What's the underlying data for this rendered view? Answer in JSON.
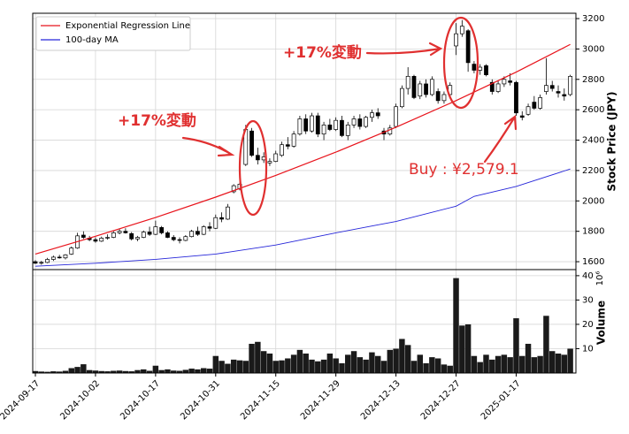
{
  "chart_data": [
    {
      "type": "candlestick",
      "ylabel": "Stock Price (JPY)",
      "categories": [
        "2024-09-17",
        null,
        null,
        null,
        null,
        null,
        null,
        null,
        null,
        null,
        "2024-10-02",
        null,
        null,
        null,
        null,
        null,
        null,
        null,
        null,
        null,
        "2024-10-17",
        null,
        null,
        null,
        null,
        null,
        null,
        null,
        null,
        null,
        "2024-10-31",
        null,
        null,
        null,
        null,
        null,
        null,
        null,
        null,
        null,
        "2024-11-15",
        null,
        null,
        null,
        null,
        null,
        null,
        null,
        null,
        null,
        "2024-11-29",
        null,
        null,
        null,
        null,
        null,
        null,
        null,
        null,
        null,
        "2024-12-13",
        null,
        null,
        null,
        null,
        null,
        null,
        null,
        null,
        null,
        "2024-12-27",
        null,
        null,
        null,
        null,
        null,
        null,
        null,
        null,
        null,
        "2025-01-17",
        null,
        null,
        null,
        null,
        null,
        null,
        null,
        null,
        null
      ],
      "open": [
        1600,
        1590,
        1595,
        1615,
        1630,
        1625,
        1650,
        1690,
        1775,
        1755,
        1745,
        1735,
        1755,
        1760,
        1790,
        1800,
        1785,
        1750,
        1760,
        1795,
        1780,
        1825,
        1790,
        1760,
        1745,
        1740,
        1765,
        1800,
        1780,
        1830,
        1820,
        1890,
        1880,
        2060,
        2080,
        2240,
        2460,
        2300,
        2270,
        2250,
        2260,
        2300,
        2370,
        2360,
        2440,
        2540,
        2460,
        2560,
        2440,
        2500,
        2470,
        2530,
        2430,
        2500,
        2540,
        2490,
        2550,
        2580,
        2460,
        2440,
        2490,
        2620,
        2740,
        2820,
        2690,
        2770,
        2700,
        2720,
        2660,
        2700,
        3020,
        3100,
        3120,
        2900,
        2860,
        2890,
        2780,
        2720,
        2770,
        2790,
        2780,
        2560,
        2570,
        2650,
        2610,
        2720,
        2760,
        2720,
        2700,
        2700
      ],
      "high": [
        1610,
        1605,
        1625,
        1640,
        1645,
        1650,
        1700,
        1790,
        1800,
        1770,
        1760,
        1765,
        1780,
        1800,
        1815,
        1820,
        1795,
        1770,
        1805,
        1830,
        1870,
        1835,
        1800,
        1775,
        1760,
        1775,
        1810,
        1830,
        1840,
        1860,
        1910,
        1925,
        1980,
        2110,
        2120,
        2500,
        2480,
        2350,
        2320,
        2280,
        2330,
        2390,
        2420,
        2460,
        2560,
        2570,
        2580,
        2580,
        2520,
        2540,
        2550,
        2560,
        2520,
        2560,
        2570,
        2560,
        2600,
        2610,
        2480,
        2500,
        2640,
        2760,
        2880,
        2830,
        2790,
        2800,
        2820,
        2740,
        2720,
        2780,
        3170,
        3190,
        3130,
        2920,
        2900,
        2900,
        2800,
        2790,
        2820,
        2840,
        2790,
        2590,
        2640,
        2690,
        2700,
        2940,
        2790,
        2760,
        2740,
        2830
      ],
      "low": [
        1585,
        1580,
        1590,
        1605,
        1620,
        1615,
        1645,
        1685,
        1750,
        1735,
        1725,
        1730,
        1745,
        1755,
        1780,
        1785,
        1740,
        1735,
        1755,
        1770,
        1775,
        1780,
        1755,
        1735,
        1720,
        1735,
        1760,
        1770,
        1775,
        1800,
        1815,
        1860,
        1875,
        2050,
        2070,
        2230,
        2290,
        2240,
        2250,
        2230,
        2255,
        2290,
        2340,
        2350,
        2430,
        2440,
        2450,
        2420,
        2400,
        2460,
        2460,
        2420,
        2400,
        2480,
        2470,
        2480,
        2520,
        2540,
        2400,
        2430,
        2480,
        2610,
        2700,
        2670,
        2670,
        2680,
        2690,
        2640,
        2640,
        2690,
        2960,
        3080,
        2850,
        2840,
        2830,
        2820,
        2700,
        2710,
        2750,
        2760,
        2560,
        2530,
        2560,
        2600,
        2600,
        2700,
        2720,
        2680,
        2660,
        2690
      ],
      "close": [
        1590,
        1595,
        1615,
        1630,
        1625,
        1645,
        1690,
        1770,
        1760,
        1745,
        1735,
        1755,
        1760,
        1790,
        1800,
        1790,
        1750,
        1760,
        1795,
        1780,
        1830,
        1790,
        1760,
        1745,
        1740,
        1765,
        1800,
        1780,
        1830,
        1820,
        1890,
        1880,
        1960,
        2100,
        2110,
        2470,
        2300,
        2270,
        2290,
        2260,
        2310,
        2370,
        2360,
        2440,
        2540,
        2460,
        2560,
        2440,
        2500,
        2470,
        2530,
        2430,
        2500,
        2540,
        2490,
        2550,
        2580,
        2560,
        2440,
        2480,
        2620,
        2740,
        2820,
        2680,
        2770,
        2700,
        2800,
        2660,
        2700,
        2760,
        3100,
        3150,
        2910,
        2860,
        2880,
        2830,
        2720,
        2770,
        2800,
        2780,
        2579.1,
        2550,
        2620,
        2610,
        2680,
        2760,
        2740,
        2710,
        2690,
        2820
      ],
      "series": [
        {
          "name": "Exponential Regression Line",
          "color": "#e8141c",
          "x": [
            0,
            10,
            20,
            30,
            40,
            50,
            60,
            70,
            80,
            89
          ],
          "values": [
            1650,
            1767,
            1891,
            2025,
            2168,
            2321,
            2485,
            2660,
            2848,
            3030
          ]
        },
        {
          "name": "100-day MA",
          "color": "#2626d9",
          "x": [
            0,
            10,
            20,
            30,
            40,
            50,
            60,
            70,
            73,
            80,
            89
          ],
          "values": [
            1570,
            1590,
            1615,
            1650,
            1710,
            1790,
            1865,
            1965,
            2030,
            2095,
            2210
          ]
        }
      ],
      "ylim": [
        1548,
        3235
      ],
      "yticks": [
        1600,
        1800,
        2000,
        2200,
        2400,
        2600,
        2800,
        3000,
        3200
      ],
      "grid": true,
      "legend": "upper left",
      "annotations": [
        "+17%変動",
        "+17%変動",
        "Buy : ¥2,579.1"
      ]
    },
    {
      "type": "bar",
      "ylabel": "Volume",
      "offset_label": "10⁶",
      "color": "#1a1a1a",
      "values": [
        0.8,
        0.6,
        0.5,
        0.7,
        0.6,
        0.9,
        2.0,
        2.5,
        3.6,
        1.2,
        1.0,
        0.8,
        0.7,
        0.9,
        1.0,
        0.8,
        0.7,
        1.2,
        1.5,
        0.9,
        3.0,
        1.2,
        1.5,
        1.0,
        0.9,
        1.3,
        1.8,
        1.5,
        2.0,
        1.8,
        7.0,
        5.0,
        3.8,
        5.5,
        5.2,
        5.0,
        12.0,
        12.8,
        9.0,
        8.0,
        5.0,
        5.2,
        6.0,
        7.5,
        9.5,
        8.0,
        5.5,
        4.8,
        5.5,
        8.0,
        6.0,
        4.0,
        7.5,
        9.0,
        6.5,
        5.5,
        8.5,
        7.0,
        5.0,
        9.5,
        10.0,
        14.0,
        11.5,
        5.0,
        7.5,
        4.0,
        6.5,
        6.0,
        3.5,
        3.0,
        39.0,
        19.5,
        20.0,
        7.0,
        4.5,
        7.5,
        5.5,
        7.0,
        7.5,
        6.5,
        22.5,
        7.0,
        12.0,
        6.5,
        7.0,
        23.5,
        9.0,
        8.0,
        7.5,
        10.0
      ],
      "ylim": [
        0,
        42.5
      ],
      "yticks": [
        10,
        20,
        30,
        40
      ],
      "grid": true
    }
  ]
}
